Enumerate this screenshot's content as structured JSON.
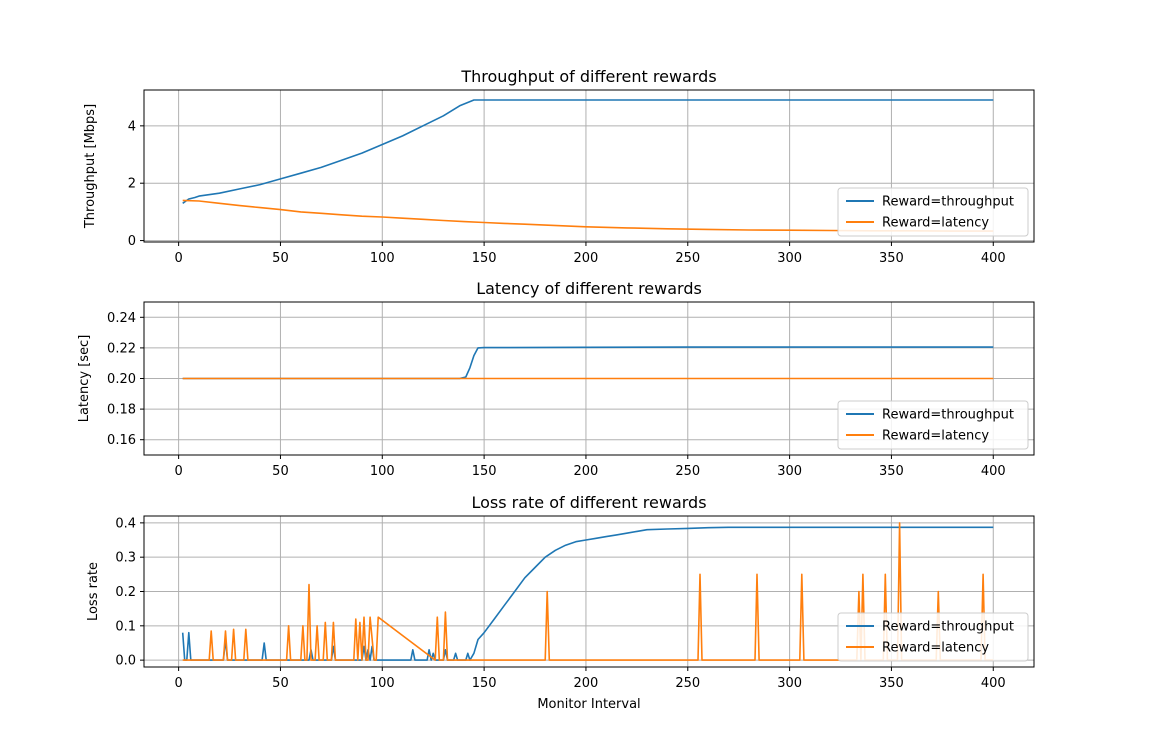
{
  "colors": {
    "throughput": "#1f77b4",
    "latency": "#ff7f0e",
    "grid": "#b0b0b0"
  },
  "chart_data": [
    {
      "type": "line",
      "title": "Throughput of different rewards",
      "xlabel": "",
      "ylabel": "Throughput [Mbps]",
      "xlim": [
        -17,
        420
      ],
      "ylim": [
        -0.05,
        5.25
      ],
      "xticks": [
        0,
        50,
        100,
        150,
        200,
        250,
        300,
        350,
        400
      ],
      "yticks": [
        0,
        2,
        4
      ],
      "grid": true,
      "legend_position": "lower-right",
      "series": [
        {
          "name": "Reward=throughput",
          "color": "#1f77b4",
          "x": [
            2,
            5,
            8,
            10,
            20,
            30,
            40,
            50,
            60,
            70,
            80,
            90,
            100,
            110,
            120,
            130,
            138,
            145,
            150,
            160,
            170,
            180,
            190,
            200,
            220,
            250,
            300,
            350,
            400
          ],
          "y": [
            1.3,
            1.45,
            1.5,
            1.55,
            1.65,
            1.8,
            1.95,
            2.15,
            2.35,
            2.55,
            2.8,
            3.05,
            3.35,
            3.65,
            4.0,
            4.35,
            4.7,
            4.9,
            4.9,
            4.9,
            4.9,
            4.9,
            4.9,
            4.9,
            4.9,
            4.9,
            4.9,
            4.9,
            4.9
          ]
        },
        {
          "name": "Reward=latency",
          "color": "#ff7f0e",
          "x": [
            2,
            10,
            20,
            30,
            40,
            50,
            60,
            70,
            80,
            90,
            100,
            110,
            120,
            130,
            140,
            150,
            160,
            170,
            180,
            190,
            200,
            220,
            240,
            260,
            280,
            300,
            320,
            340,
            360,
            380,
            400
          ],
          "y": [
            1.4,
            1.38,
            1.3,
            1.22,
            1.15,
            1.08,
            1.0,
            0.95,
            0.9,
            0.85,
            0.82,
            0.78,
            0.74,
            0.7,
            0.66,
            0.63,
            0.6,
            0.57,
            0.54,
            0.51,
            0.48,
            0.44,
            0.41,
            0.39,
            0.37,
            0.36,
            0.35,
            0.34,
            0.34,
            0.33,
            0.33
          ]
        }
      ]
    },
    {
      "type": "line",
      "title": "Latency of different rewards",
      "xlabel": "",
      "ylabel": "Latency [sec]",
      "xlim": [
        -17,
        420
      ],
      "ylim": [
        0.15,
        0.25
      ],
      "xticks": [
        0,
        50,
        100,
        150,
        200,
        250,
        300,
        350,
        400
      ],
      "yticks": [
        0.16,
        0.18,
        0.2,
        0.22,
        0.24
      ],
      "grid": true,
      "legend_position": "lower-right",
      "series": [
        {
          "name": "Reward=throughput",
          "color": "#1f77b4",
          "x": [
            2,
            138,
            141,
            143,
            145,
            147,
            150,
            200,
            250,
            300,
            350,
            400
          ],
          "y": [
            0.2,
            0.2,
            0.201,
            0.207,
            0.215,
            0.22,
            0.2202,
            0.2204,
            0.2205,
            0.2205,
            0.2205,
            0.2205
          ]
        },
        {
          "name": "Reward=latency",
          "color": "#ff7f0e",
          "x": [
            2,
            400
          ],
          "y": [
            0.2,
            0.2
          ]
        }
      ]
    },
    {
      "type": "line",
      "title": "Loss rate of different rewards",
      "xlabel": "Monitor Interval",
      "ylabel": "Loss rate",
      "xlim": [
        -17,
        420
      ],
      "ylim": [
        -0.02,
        0.42
      ],
      "xticks": [
        0,
        50,
        100,
        150,
        200,
        250,
        300,
        350,
        400
      ],
      "yticks": [
        0.0,
        0.1,
        0.2,
        0.3,
        0.4
      ],
      "grid": true,
      "legend_position": "lower-right",
      "series": [
        {
          "name": "Reward=throughput",
          "color": "#1f77b4",
          "x": [
            2,
            3,
            4,
            5,
            6,
            7,
            8,
            22,
            23,
            24,
            25,
            26,
            41,
            42,
            43,
            64,
            65,
            66,
            67,
            68,
            75,
            76,
            77,
            90,
            91,
            92,
            93,
            94,
            95,
            96,
            97,
            114,
            115,
            116,
            122,
            123,
            124,
            125,
            126,
            130,
            131,
            132,
            135,
            136,
            137,
            141,
            142,
            143,
            145,
            147,
            150,
            155,
            160,
            165,
            170,
            175,
            180,
            185,
            190,
            195,
            200,
            205,
            210,
            215,
            220,
            225,
            230,
            240,
            250,
            260,
            270,
            280,
            300,
            320,
            340,
            360,
            380,
            400
          ],
          "y": [
            0.08,
            0.0,
            0.0,
            0.08,
            0.0,
            0.0,
            0.0,
            0.0,
            0.06,
            0.0,
            0.0,
            0.0,
            0.0,
            0.05,
            0.0,
            0.0,
            0.03,
            0.0,
            0.0,
            0.0,
            0.0,
            0.04,
            0.0,
            0.0,
            0.04,
            0.0,
            0.03,
            0.0,
            0.04,
            0.0,
            0.0,
            0.0,
            0.03,
            0.0,
            0.0,
            0.03,
            0.0,
            0.02,
            0.0,
            0.0,
            0.03,
            0.0,
            0.0,
            0.02,
            0.0,
            0.0,
            0.02,
            0.0,
            0.02,
            0.06,
            0.08,
            0.12,
            0.16,
            0.2,
            0.24,
            0.27,
            0.3,
            0.32,
            0.335,
            0.345,
            0.35,
            0.355,
            0.36,
            0.365,
            0.37,
            0.375,
            0.38,
            0.382,
            0.384,
            0.386,
            0.387,
            0.387,
            0.387,
            0.387,
            0.387,
            0.387,
            0.387,
            0.387
          ]
        },
        {
          "name": "Reward=latency",
          "color": "#ff7f0e",
          "x": [
            2,
            15,
            16,
            17,
            22,
            23,
            24,
            26,
            27,
            28,
            32,
            33,
            34,
            53,
            54,
            55,
            60,
            61,
            62,
            63,
            64,
            65,
            67,
            68,
            69,
            71,
            72,
            73,
            75,
            76,
            77,
            86,
            87,
            88,
            89,
            90,
            91,
            92,
            93,
            94,
            96,
            97,
            98,
            126,
            127,
            128,
            130,
            131,
            132,
            180,
            181,
            182,
            255,
            256,
            257,
            283,
            284,
            285,
            305,
            306,
            307,
            333,
            334,
            335,
            336,
            337,
            346,
            347,
            348,
            353,
            354,
            355,
            356,
            372,
            373,
            374,
            394,
            395,
            396,
            400
          ],
          "y": [
            0.0,
            0.0,
            0.085,
            0.0,
            0.0,
            0.085,
            0.0,
            0.0,
            0.09,
            0.0,
            0.0,
            0.09,
            0.0,
            0.0,
            0.1,
            0.0,
            0.0,
            0.1,
            0.0,
            0.0,
            0.22,
            0.0,
            0.0,
            0.1,
            0.0,
            0.0,
            0.11,
            0.0,
            0.0,
            0.11,
            0.0,
            0.0,
            0.12,
            0.0,
            0.11,
            0.0,
            0.125,
            0.0,
            0.0,
            0.125,
            0.0,
            0.0,
            0.125,
            0.0,
            0.125,
            0.0,
            0.0,
            0.14,
            0.0,
            0.0,
            0.2,
            0.0,
            0.0,
            0.25,
            0.0,
            0.0,
            0.25,
            0.0,
            0.0,
            0.25,
            0.0,
            0.0,
            0.2,
            0.0,
            0.25,
            0.0,
            0.0,
            0.25,
            0.0,
            0.0,
            0.4,
            0.0,
            0.0,
            0.0,
            0.2,
            0.0,
            0.0,
            0.25,
            0.0,
            0.0
          ]
        }
      ]
    }
  ]
}
